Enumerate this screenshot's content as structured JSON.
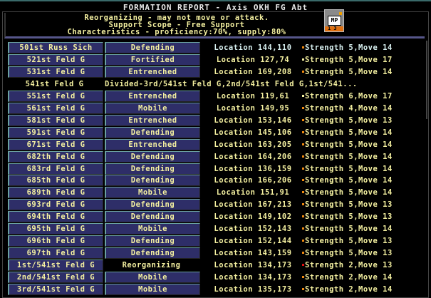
{
  "window": {
    "title": "FORMATION REPORT - Axis OKH FG Abt"
  },
  "info": {
    "lines": [
      "Reorganizing - may not move or attack.",
      "Support Scope - Free Support",
      "Characteristics - proficiency:70%, supply:80%"
    ]
  },
  "mp_icon": {
    "label": "MP",
    "numbers": "1 3",
    "icon": "mp-unit-icon"
  },
  "colors": {
    "button_bg": "#2e2e68",
    "text": "#f4f0a0",
    "bullet_orange": "#f08a10",
    "bullet_yellow": "#f4f0a0",
    "bullet_red": "#e01010"
  },
  "rows": [
    {
      "name": "501st Russ Sich",
      "status": "Defending",
      "location": "Location 144,110",
      "strength": "Strength 5,Move 14",
      "bullet": "#f08a10",
      "selected": true
    },
    {
      "name": "521st Feld G",
      "status": "Fortified",
      "location": "Location 127,74",
      "strength": "Strength 5,Move 17",
      "bullet": "#f4f0a0"
    },
    {
      "name": "531st Feld G",
      "status": "Entrenched",
      "location": "Location 169,208",
      "strength": "Strength 5,Move 14",
      "bullet": "#f08a10"
    },
    {
      "name": "541st Feld G",
      "divided": "Divided-3rd/541st Feld G,2nd/541st Feld G,1st/541..."
    },
    {
      "name": "551st Feld G",
      "status": "Entrenched",
      "location": "Location 119,61",
      "strength": "Strength 6,Move 17",
      "bullet": "#f4f0a0"
    },
    {
      "name": "561st Feld G",
      "status": "Mobile",
      "location": "Location 149,95",
      "strength": "Strength 4,Move 14",
      "bullet": "#f08a10"
    },
    {
      "name": "581st Feld G",
      "status": "Entrenched",
      "location": "Location 153,146",
      "strength": "Strength 5,Move 13",
      "bullet": "#f08a10"
    },
    {
      "name": "591st Feld G",
      "status": "Defending",
      "location": "Location 145,106",
      "strength": "Strength 5,Move 14",
      "bullet": "#f08a10"
    },
    {
      "name": "671st Feld G",
      "status": "Entrenched",
      "location": "Location 163,205",
      "strength": "Strength 5,Move 14",
      "bullet": "#f08a10"
    },
    {
      "name": "682th Feld G",
      "status": "Defending",
      "location": "Location 164,206",
      "strength": "Strength 5,Move 14",
      "bullet": "#f08a10"
    },
    {
      "name": "683rd Feld G",
      "status": "Defending",
      "location": "Location 136,159",
      "strength": "Strength 5,Move 14",
      "bullet": "#f08a10"
    },
    {
      "name": "685th Feld G",
      "status": "Defending",
      "location": "Location 166,206",
      "strength": "Strength 5,Move 14",
      "bullet": "#f08a10"
    },
    {
      "name": "689th Feld G",
      "status": "Mobile",
      "location": "Location 151,91",
      "strength": "Strength 5,Move 14",
      "bullet": "#f08a10"
    },
    {
      "name": "693rd Feld G",
      "status": "Defending",
      "location": "Location 167,213",
      "strength": "Strength 5,Move 13",
      "bullet": "#f08a10"
    },
    {
      "name": "694th Feld G",
      "status": "Defending",
      "location": "Location 149,102",
      "strength": "Strength 5,Move 13",
      "bullet": "#f08a10"
    },
    {
      "name": "695th Feld G",
      "status": "Mobile",
      "location": "Location 152,143",
      "strength": "Strength 5,Move 14",
      "bullet": "#f08a10"
    },
    {
      "name": "696th Feld G",
      "status": "Defending",
      "location": "Location 152,144",
      "strength": "Strength 5,Move 13",
      "bullet": "#f08a10"
    },
    {
      "name": "697th Feld G",
      "status": "Defending",
      "location": "Location 143,159",
      "strength": "Strength 5,Move 13",
      "bullet": "#f08a10"
    },
    {
      "name": "1st/541st Feld G",
      "status": "Reorganizing",
      "status_plain": true,
      "location": "Location 134,173",
      "strength": "Strength 2,Move 13",
      "bullet": "#e01010"
    },
    {
      "name": "2nd/541st Feld G",
      "status": "Mobile",
      "location": "Location 134,173",
      "strength": "Strength 2,Move 14",
      "bullet": "#f08a10"
    },
    {
      "name": "3rd/541st Feld G",
      "status": "Mobile",
      "location": "Location 135,173",
      "strength": "Strength 2,Move 14",
      "bullet": "#f08a10"
    }
  ]
}
